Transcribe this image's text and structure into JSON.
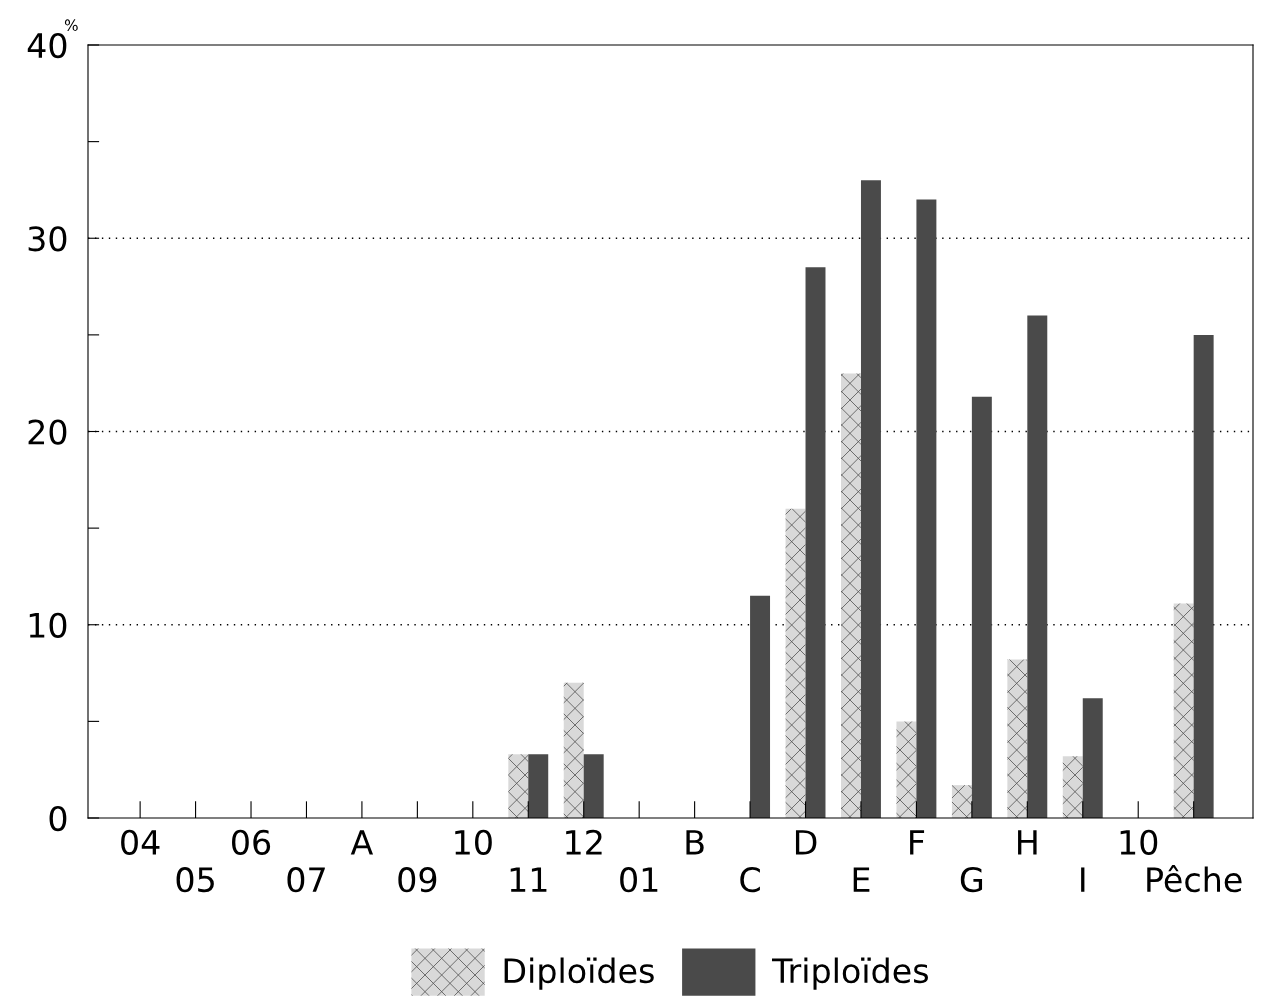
{
  "chart_data": {
    "type": "bar",
    "ylabel": "%",
    "categories": [
      "04",
      "05",
      "06",
      "07",
      "A",
      "09",
      "10",
      "11",
      "12",
      "01",
      "B",
      "C",
      "D",
      "E",
      "F",
      "G",
      "H",
      "I",
      "10",
      "Pêche"
    ],
    "series": [
      {
        "name": "Diploïdes",
        "color": "#d9d9d9",
        "values": [
          null,
          null,
          null,
          null,
          null,
          null,
          null,
          3.3,
          7,
          null,
          null,
          null,
          16,
          23,
          5,
          1.7,
          8.2,
          3.2,
          null,
          11.1
        ]
      },
      {
        "name": "Triploïdes",
        "color": "#4a4a4a",
        "values": [
          null,
          null,
          null,
          null,
          null,
          null,
          null,
          3.3,
          3.3,
          null,
          null,
          11.5,
          28.5,
          33,
          32,
          21.8,
          26,
          6.2,
          null,
          25
        ]
      }
    ],
    "ylim": [
      0,
      40
    ],
    "yticks": [
      0,
      {
        "value": 5,
        "label": null
      },
      10,
      {
        "value": 15,
        "label": null
      },
      20,
      {
        "value": 25,
        "label": null
      },
      30,
      {
        "value": 35,
        "label": null
      },
      40
    ],
    "grid": "y",
    "legend": "bottom"
  }
}
